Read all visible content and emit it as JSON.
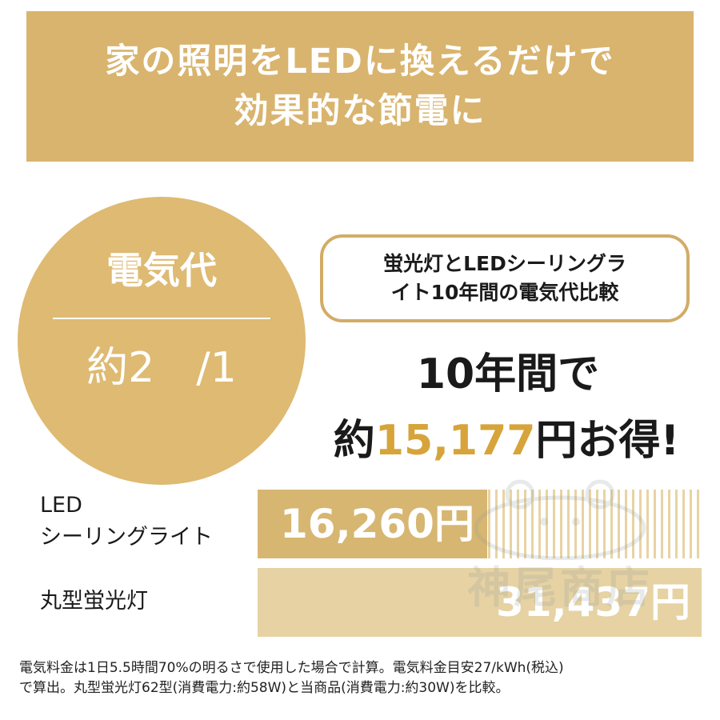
{
  "banner": {
    "line1": "家の照明をLEDに換えるだけで",
    "line2": "効果的な節電に"
  },
  "circle": {
    "title": "電気代",
    "value": "約2　/1"
  },
  "compare_box": {
    "line1": "蛍光灯とLEDシーリングラ",
    "line2": "イト10年間の電気代比較"
  },
  "savings": {
    "line1": "10年間で",
    "prefix": "約",
    "amount": "15,177",
    "suffix": "円お得!"
  },
  "comparison": {
    "rows": [
      {
        "label_line1": "LED",
        "label_line2": "シーリングライト",
        "value_text": "16,260円",
        "value": 16260
      },
      {
        "label_line1": "丸型蛍光灯",
        "value_text": "31,437円",
        "value": 31437
      }
    ]
  },
  "watermark": {
    "text": "神尾商店"
  },
  "footnote": {
    "line1": "電気料金は1日5.5時間70%の明るさで使用した場合で計算。電気料金目安27/kWh(税込)",
    "line2": "で算出。丸型蛍光灯62型(消費電力:約58W)と当商品(消費電力:約30W)を比較。"
  },
  "colors": {
    "gold": "#d9b46e",
    "savings_accent": "#d6a43a",
    "bar_light": "#e6d2a3"
  }
}
